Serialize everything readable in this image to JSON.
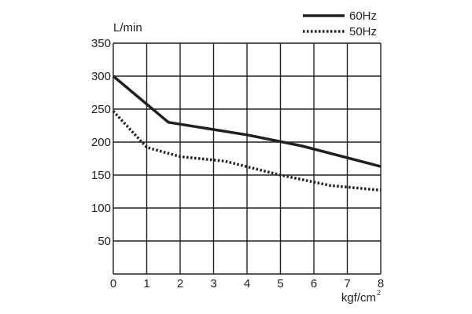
{
  "chart_data": {
    "type": "line",
    "title": "",
    "xlabel": "kgf/cm",
    "xlabel_superscript": "2",
    "ylabel": "L/min",
    "xlim": [
      0,
      8
    ],
    "ylim": [
      0,
      350
    ],
    "x_ticks": [
      0,
      1,
      2,
      3,
      4,
      5,
      6,
      7,
      8
    ],
    "y_ticks": [
      50,
      100,
      150,
      200,
      250,
      300,
      350
    ],
    "x_tick_labels": [
      "0",
      "1",
      "2",
      "3",
      "4",
      "5",
      "6",
      "7",
      "8"
    ],
    "y_tick_labels": [
      "50",
      "100",
      "150",
      "200",
      "250",
      "300",
      "350"
    ],
    "grid": true,
    "legend_position": "top-right",
    "line_color": "#231f20",
    "series": [
      {
        "name": "60Hz",
        "style": "solid",
        "x": [
          0,
          1.65,
          4.0,
          5.65,
          8.0
        ],
        "y": [
          300,
          230,
          211,
          194,
          163
        ]
      },
      {
        "name": "50Hz",
        "style": "dotted",
        "x": [
          0,
          1.0,
          2.0,
          3.35,
          5.0,
          6.5,
          8.0
        ],
        "y": [
          247,
          192,
          178,
          171,
          150,
          134,
          127
        ]
      }
    ]
  }
}
